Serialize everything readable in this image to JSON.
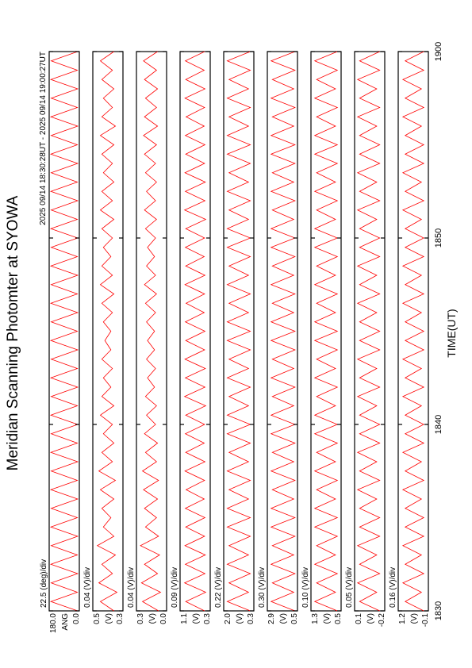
{
  "chart_data": {
    "type": "line",
    "title": "Meridian Scanning Photomter at SYOWA",
    "subtitle": "2025 09/14 18:30:28UT - 2025 09/14 19:00:27UT",
    "x_label": "TIME(UT)",
    "xlim": [
      30,
      60
    ],
    "xticks": [
      {
        "value": 30,
        "label": "1830"
      },
      {
        "value": 40,
        "label": "1840"
      },
      {
        "value": 50,
        "label": "1850"
      },
      {
        "value": 60,
        "label": "1900"
      }
    ],
    "x": [
      30,
      30.5,
      31,
      31.5,
      32,
      32.5,
      33,
      33.5,
      34,
      34.5,
      35,
      35.5,
      36,
      36.5,
      37,
      37.5,
      38,
      38.5,
      39,
      39.5,
      40,
      40.5,
      41,
      41.5,
      42,
      42.5,
      43,
      43.5,
      44,
      44.5,
      45,
      45.5,
      46,
      46.5,
      47,
      47.5,
      48,
      48.5,
      49,
      49.5,
      50,
      50.5,
      51,
      51.5,
      52,
      52.5,
      53,
      53.5,
      54,
      54.5,
      55,
      55.5,
      56,
      56.5,
      57,
      57.5,
      58,
      58.5,
      59,
      59.5,
      60
    ],
    "series": [
      {
        "scale_label": "22.5 (deg)/div",
        "label": "ANG",
        "color": "#ff0000",
        "ylim": [
          0,
          180
        ],
        "yticks": [
          {
            "value": 0,
            "label": "0.0"
          },
          {
            "value": 180,
            "label": "180.0"
          }
        ],
        "values": [
          10,
          170,
          12,
          168,
          10,
          170,
          12,
          168,
          10,
          170,
          12,
          168,
          10,
          170,
          12,
          168,
          10,
          170,
          12,
          168,
          10,
          170,
          12,
          168,
          10,
          170,
          12,
          168,
          10,
          170,
          12,
          168,
          10,
          170,
          12,
          168,
          10,
          170,
          12,
          168,
          10,
          170,
          12,
          168,
          10,
          170,
          12,
          168,
          10,
          170,
          12,
          168,
          10,
          170,
          12,
          168,
          10,
          170,
          12,
          168,
          10
        ]
      },
      {
        "scale_label": "0.04 (V)/div",
        "label": "(V)",
        "color": "#ff0000",
        "ylim": [
          0.3,
          0.5
        ],
        "yticks": [
          0.3,
          0.5
        ],
        "values": [
          0.36,
          0.45,
          0.34,
          0.46,
          0.37,
          0.44,
          0.35,
          0.47,
          0.36,
          0.43,
          0.38,
          0.44,
          0.36,
          0.45,
          0.35,
          0.46,
          0.37,
          0.44,
          0.36,
          0.43,
          0.37,
          0.45,
          0.36,
          0.44,
          0.38,
          0.43,
          0.37,
          0.44,
          0.38,
          0.42,
          0.38,
          0.43,
          0.37,
          0.44,
          0.36,
          0.45,
          0.37,
          0.44,
          0.38,
          0.43,
          0.37,
          0.44,
          0.36,
          0.45,
          0.37,
          0.44,
          0.36,
          0.43,
          0.37,
          0.44,
          0.36,
          0.45,
          0.35,
          0.44,
          0.37,
          0.43,
          0.36,
          0.44,
          0.37,
          0.45,
          0.36
        ]
      },
      {
        "scale_label": "0.04 (V)/div",
        "label": "(V)",
        "color": "#ff0000",
        "ylim": [
          0,
          0.3
        ],
        "yticks": [
          {
            "value": 0,
            "label": "0.0"
          },
          0.3
        ],
        "values": [
          0.08,
          0.24,
          0.06,
          0.25,
          0.09,
          0.22,
          0.07,
          0.26,
          0.08,
          0.21,
          0.1,
          0.22,
          0.09,
          0.23,
          0.08,
          0.24,
          0.1,
          0.21,
          0.09,
          0.22,
          0.11,
          0.2,
          0.1,
          0.21,
          0.12,
          0.19,
          0.11,
          0.2,
          0.12,
          0.19,
          0.12,
          0.2,
          0.11,
          0.21,
          0.1,
          0.22,
          0.11,
          0.2,
          0.12,
          0.19,
          0.11,
          0.21,
          0.1,
          0.22,
          0.11,
          0.2,
          0.1,
          0.21,
          0.11,
          0.22,
          0.1,
          0.23,
          0.09,
          0.22,
          0.1,
          0.21,
          0.09,
          0.22,
          0.1,
          0.23,
          0.09
        ]
      },
      {
        "scale_label": "0.09 (V)/div",
        "label": "(V)",
        "color": "#ff0000",
        "ylim": [
          0.3,
          1.1
        ],
        "yticks": [
          0.3,
          1.1
        ],
        "values": [
          0.45,
          0.95,
          0.42,
          0.98,
          0.44,
          0.96,
          0.43,
          0.97,
          0.45,
          0.95,
          0.44,
          0.96,
          0.46,
          0.94,
          0.45,
          0.97,
          0.44,
          0.95,
          0.46,
          0.96,
          0.45,
          0.95,
          0.42,
          0.98,
          0.44,
          0.96,
          0.43,
          0.97,
          0.45,
          0.95,
          0.44,
          0.96,
          0.46,
          0.94,
          0.45,
          0.97,
          0.44,
          0.95,
          0.46,
          0.96,
          0.45,
          0.95,
          0.42,
          0.98,
          0.44,
          0.96,
          0.43,
          0.97,
          0.45,
          0.95,
          0.44,
          0.96,
          0.46,
          0.94,
          0.45,
          0.97,
          0.44,
          0.95,
          0.46,
          0.96,
          0.45
        ]
      },
      {
        "scale_label": "0.22 (V)/div",
        "label": "(V)",
        "color": "#ff0000",
        "ylim": [
          0.3,
          2
        ],
        "yticks": [
          0.3,
          {
            "value": 2,
            "label": "2.0"
          }
        ],
        "values": [
          0.5,
          1.8,
          0.6,
          1.7,
          0.5,
          1.8,
          0.6,
          1.7,
          0.5,
          1.8,
          0.5,
          1.8,
          0.6,
          1.7,
          0.5,
          1.8,
          0.6,
          1.7,
          0.5,
          1.8,
          0.5,
          1.8,
          0.6,
          1.7,
          0.5,
          1.8,
          0.6,
          1.7,
          0.5,
          1.8,
          0.5,
          1.8,
          0.6,
          1.7,
          0.5,
          1.8,
          0.6,
          1.7,
          0.5,
          1.8,
          0.5,
          1.8,
          0.6,
          1.7,
          0.5,
          1.8,
          0.6,
          1.7,
          0.5,
          1.8,
          0.5,
          1.8,
          0.6,
          1.7,
          0.5,
          1.8,
          0.6,
          1.7,
          0.5,
          1.8,
          0.5
        ]
      },
      {
        "scale_label": "0.30 (V)/div",
        "label": "(V)",
        "color": "#ff0000",
        "ylim": [
          0.5,
          2.9
        ],
        "yticks": [
          0.5,
          2.9
        ],
        "values": [
          0.7,
          2.6,
          0.8,
          2.5,
          0.7,
          2.6,
          0.8,
          2.5,
          0.7,
          2.6,
          0.7,
          2.6,
          0.8,
          2.5,
          0.7,
          2.6,
          0.8,
          2.5,
          0.7,
          2.6,
          0.7,
          2.6,
          0.8,
          2.5,
          0.7,
          2.6,
          0.8,
          2.5,
          0.7,
          2.6,
          0.7,
          2.6,
          0.8,
          2.5,
          0.7,
          2.6,
          0.8,
          2.5,
          0.7,
          2.6,
          0.7,
          2.6,
          0.8,
          2.5,
          0.7,
          2.6,
          0.8,
          2.5,
          0.7,
          2.6,
          0.7,
          2.6,
          0.8,
          2.5,
          0.7,
          2.6,
          0.8,
          2.5,
          0.7,
          2.6,
          0.7
        ]
      },
      {
        "scale_label": "0.10 (V)/div",
        "label": "(V)",
        "color": "#ff0000",
        "ylim": [
          0.5,
          1.3
        ],
        "yticks": [
          0.5,
          1.3
        ],
        "values": [
          0.6,
          1.2,
          0.65,
          1.15,
          0.6,
          1.2,
          0.65,
          1.15,
          0.6,
          1.2,
          0.6,
          1.2,
          0.65,
          1.15,
          0.6,
          1.2,
          0.65,
          1.15,
          0.6,
          1.2,
          0.6,
          1.2,
          0.65,
          1.15,
          0.6,
          1.2,
          0.65,
          1.15,
          0.6,
          1.2,
          0.6,
          1.2,
          0.65,
          1.15,
          0.6,
          1.2,
          0.65,
          1.15,
          0.6,
          1.2,
          0.6,
          1.2,
          0.65,
          1.15,
          0.6,
          1.2,
          0.65,
          1.15,
          0.6,
          1.2,
          0.6,
          1.2,
          0.65,
          1.15,
          0.6,
          1.2,
          0.65,
          1.15,
          0.6,
          1.2,
          0.6
        ]
      },
      {
        "scale_label": "0.05 (V)/div",
        "label": "(V)",
        "color": "#ff0000",
        "ylim": [
          -0.2,
          0.1
        ],
        "yticks": [
          -0.2,
          0.1
        ],
        "values": [
          -0.15,
          0.05,
          -0.12,
          0.07,
          -0.15,
          0.05,
          -0.12,
          0.07,
          -0.15,
          0.05,
          -0.15,
          0.05,
          -0.12,
          0.07,
          -0.15,
          0.05,
          -0.12,
          0.07,
          -0.15,
          0.05,
          -0.15,
          0.05,
          -0.12,
          0.07,
          -0.15,
          0.05,
          -0.12,
          0.07,
          -0.15,
          0.05,
          -0.15,
          0.05,
          -0.12,
          0.07,
          -0.15,
          0.05,
          -0.12,
          0.07,
          -0.15,
          0.05,
          -0.15,
          0.05,
          -0.12,
          0.07,
          -0.15,
          0.05,
          -0.12,
          0.07,
          -0.15,
          0.05,
          -0.15,
          0.05,
          -0.12,
          0.07,
          -0.15,
          0.05,
          -0.12,
          0.07,
          -0.15,
          0.05,
          -0.15
        ]
      },
      {
        "scale_label": "0.16 (V)/div",
        "label": "(V)",
        "color": "#ff0000",
        "ylim": [
          -0.1,
          1.2
        ],
        "yticks": [
          -0.1,
          1.2
        ],
        "values": [
          0.1,
          0.9,
          0.2,
          1.0,
          0.1,
          0.9,
          0.2,
          1.0,
          0.1,
          0.9,
          0.1,
          0.9,
          0.2,
          1.0,
          0.1,
          0.9,
          0.2,
          1.0,
          0.1,
          0.9,
          0.1,
          0.9,
          0.2,
          1.0,
          0.1,
          0.9,
          0.2,
          1.0,
          0.1,
          0.9,
          0.1,
          0.9,
          0.2,
          1.0,
          0.1,
          0.9,
          0.2,
          1.0,
          0.1,
          0.9,
          0.1,
          0.9,
          0.2,
          1.0,
          0.1,
          0.9,
          0.2,
          1.0,
          0.1,
          0.9,
          0.1,
          0.9,
          0.2,
          1.0,
          0.1,
          0.9,
          0.2,
          1.0,
          0.1,
          0.9,
          0.1
        ]
      }
    ]
  }
}
